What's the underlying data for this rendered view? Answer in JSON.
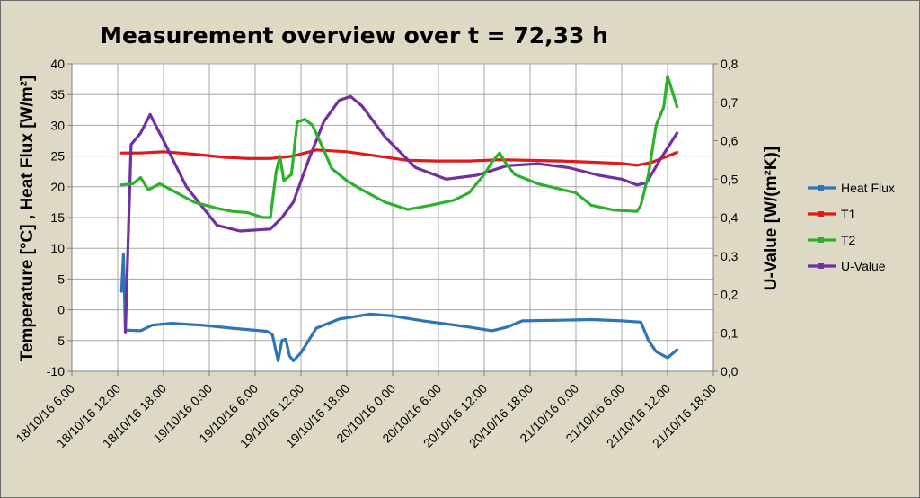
{
  "chart_data": {
    "type": "line",
    "title": "Measurement overview over t = 72,33 h",
    "ylabel": "Temperature [°C] , Heat Flux [W/m²]",
    "y2label": "U-Value [W/(m²K)]",
    "ylim": [
      -10,
      40
    ],
    "y2lim": [
      0,
      0.8
    ],
    "yticks": [
      "-10",
      "-5",
      "0",
      "5",
      "10",
      "15",
      "20",
      "25",
      "30",
      "35",
      "40"
    ],
    "y2ticks": [
      "0,0",
      "0,1",
      "0,2",
      "0,3",
      "0,4",
      "0,5",
      "0,6",
      "0,7",
      "0,8"
    ],
    "xlim": [
      "2016-10-18T06:00",
      "2016-10-21T18:00"
    ],
    "xticks": [
      "18/10/16 6:00",
      "18/10/16 12:00",
      "18/10/16 18:00",
      "19/10/16 0:00",
      "19/10/16 6:00",
      "19/10/16 12:00",
      "19/10/16 18:00",
      "20/10/16 0:00",
      "20/10/16 6:00",
      "20/10/16 12:00",
      "20/10/16 18:00",
      "21/10/16 0:00",
      "21/10/16 6:00",
      "21/10/16 12:00",
      "21/10/16 18:00"
    ],
    "grid": true,
    "legend_position": "right",
    "series": [
      {
        "name": "Heat Flux",
        "color": "#2e75b6",
        "axis": "left",
        "points": [
          [
            "2016-10-18T12:30",
            3
          ],
          [
            "2016-10-18T12:45",
            9
          ],
          [
            "2016-10-18T13:00",
            -3.3
          ],
          [
            "2016-10-18T15:00",
            -3.4
          ],
          [
            "2016-10-18T16:30",
            -2.5
          ],
          [
            "2016-10-18T19:00",
            -2.2
          ],
          [
            "2016-10-18T23:00",
            -2.5
          ],
          [
            "2016-10-19T03:00",
            -3
          ],
          [
            "2016-10-19T07:30",
            -3.5
          ],
          [
            "2016-10-19T08:15",
            -4
          ],
          [
            "2016-10-19T09:00",
            -8.3
          ],
          [
            "2016-10-19T09:30",
            -5
          ],
          [
            "2016-10-19T10:00",
            -4.8
          ],
          [
            "2016-10-19T10:30",
            -7.5
          ],
          [
            "2016-10-19T11:00",
            -8.3
          ],
          [
            "2016-10-19T12:00",
            -7
          ],
          [
            "2016-10-19T14:00",
            -3
          ],
          [
            "2016-10-19T17:00",
            -1.5
          ],
          [
            "2016-10-19T21:00",
            -0.7
          ],
          [
            "2016-10-20T00:00",
            -1
          ],
          [
            "2016-10-20T04:00",
            -1.8
          ],
          [
            "2016-10-20T10:00",
            -2.8
          ],
          [
            "2016-10-20T13:00",
            -3.4
          ],
          [
            "2016-10-20T15:00",
            -2.8
          ],
          [
            "2016-10-20T17:00",
            -1.8
          ],
          [
            "2016-10-20T22:00",
            -1.7
          ],
          [
            "2016-10-21T02:00",
            -1.6
          ],
          [
            "2016-10-21T06:00",
            -1.8
          ],
          [
            "2016-10-21T08:30",
            -2
          ],
          [
            "2016-10-21T09:30",
            -5
          ],
          [
            "2016-10-21T10:30",
            -6.8
          ],
          [
            "2016-10-21T12:00",
            -7.8
          ],
          [
            "2016-10-21T13:15",
            -6.5
          ]
        ]
      },
      {
        "name": "T1",
        "color": "#e0191b",
        "axis": "left",
        "points": [
          [
            "2016-10-18T12:30",
            25.5
          ],
          [
            "2016-10-18T15:00",
            25.5
          ],
          [
            "2016-10-18T18:00",
            25.7
          ],
          [
            "2016-10-18T22:00",
            25.3
          ],
          [
            "2016-10-19T02:00",
            24.8
          ],
          [
            "2016-10-19T05:00",
            24.6
          ],
          [
            "2016-10-19T08:00",
            24.6
          ],
          [
            "2016-10-19T11:00",
            25
          ],
          [
            "2016-10-19T14:00",
            26
          ],
          [
            "2016-10-19T18:00",
            25.7
          ],
          [
            "2016-10-19T22:00",
            25
          ],
          [
            "2016-10-20T02:00",
            24.3
          ],
          [
            "2016-10-20T06:00",
            24.2
          ],
          [
            "2016-10-20T10:00",
            24.2
          ],
          [
            "2016-10-20T14:00",
            24.4
          ],
          [
            "2016-10-20T18:00",
            24.3
          ],
          [
            "2016-10-20T22:00",
            24.2
          ],
          [
            "2016-10-21T02:00",
            24
          ],
          [
            "2016-10-21T06:00",
            23.8
          ],
          [
            "2016-10-21T08:00",
            23.5
          ],
          [
            "2016-10-21T10:00",
            24
          ],
          [
            "2016-10-21T13:15",
            25.6
          ]
        ]
      },
      {
        "name": "T2",
        "color": "#2db12d",
        "axis": "left",
        "points": [
          [
            "2016-10-18T12:30",
            20.3
          ],
          [
            "2016-10-18T14:00",
            20.5
          ],
          [
            "2016-10-18T15:00",
            21.5
          ],
          [
            "2016-10-18T16:00",
            19.5
          ],
          [
            "2016-10-18T17:30",
            20.5
          ],
          [
            "2016-10-18T19:00",
            19.5
          ],
          [
            "2016-10-18T22:00",
            17.5
          ],
          [
            "2016-10-19T01:00",
            16.5
          ],
          [
            "2016-10-19T03:00",
            16
          ],
          [
            "2016-10-19T05:00",
            15.8
          ],
          [
            "2016-10-19T07:00",
            15
          ],
          [
            "2016-10-19T08:00",
            15
          ],
          [
            "2016-10-19T08:45",
            22.5
          ],
          [
            "2016-10-19T09:15",
            25
          ],
          [
            "2016-10-19T09:45",
            21
          ],
          [
            "2016-10-19T10:45",
            22
          ],
          [
            "2016-10-19T11:30",
            30.5
          ],
          [
            "2016-10-19T12:30",
            31
          ],
          [
            "2016-10-19T13:30",
            30
          ],
          [
            "2016-10-19T15:00",
            26
          ],
          [
            "2016-10-19T16:00",
            23
          ],
          [
            "2016-10-19T18:00",
            21
          ],
          [
            "2016-10-19T20:00",
            19.5
          ],
          [
            "2016-10-19T23:00",
            17.5
          ],
          [
            "2016-10-20T02:00",
            16.3
          ],
          [
            "2016-10-20T05:00",
            17
          ],
          [
            "2016-10-20T08:00",
            17.8
          ],
          [
            "2016-10-20T10:00",
            19
          ],
          [
            "2016-10-20T12:00",
            22
          ],
          [
            "2016-10-20T13:00",
            24
          ],
          [
            "2016-10-20T14:00",
            25.5
          ],
          [
            "2016-10-20T15:00",
            23.5
          ],
          [
            "2016-10-20T16:00",
            22
          ],
          [
            "2016-10-20T19:00",
            20.5
          ],
          [
            "2016-10-21T00:00",
            19
          ],
          [
            "2016-10-21T02:00",
            17
          ],
          [
            "2016-10-21T05:00",
            16.2
          ],
          [
            "2016-10-21T08:00",
            16
          ],
          [
            "2016-10-21T08:30",
            17
          ],
          [
            "2016-10-21T09:30",
            22
          ],
          [
            "2016-10-21T10:30",
            30
          ],
          [
            "2016-10-21T11:30",
            33
          ],
          [
            "2016-10-21T12:00",
            38
          ],
          [
            "2016-10-21T12:30",
            36
          ],
          [
            "2016-10-21T13:15",
            33
          ]
        ]
      },
      {
        "name": "U-Value",
        "color": "#7030a0",
        "axis": "right",
        "points": [
          [
            "2016-10-18T13:00",
            0.1
          ],
          [
            "2016-10-18T13:45",
            0.59
          ],
          [
            "2016-10-18T15:00",
            0.62
          ],
          [
            "2016-10-18T16:15",
            0.668
          ],
          [
            "2016-10-18T18:00",
            0.6
          ],
          [
            "2016-10-18T21:00",
            0.48
          ],
          [
            "2016-10-19T01:00",
            0.38
          ],
          [
            "2016-10-19T04:00",
            0.365
          ],
          [
            "2016-10-19T08:00",
            0.37
          ],
          [
            "2016-10-19T09:30",
            0.4
          ],
          [
            "2016-10-19T11:00",
            0.44
          ],
          [
            "2016-10-19T13:00",
            0.55
          ],
          [
            "2016-10-19T15:00",
            0.65
          ],
          [
            "2016-10-19T17:00",
            0.705
          ],
          [
            "2016-10-19T18:30",
            0.715
          ],
          [
            "2016-10-19T20:00",
            0.69
          ],
          [
            "2016-10-19T23:00",
            0.61
          ],
          [
            "2016-10-20T03:00",
            0.53
          ],
          [
            "2016-10-20T07:00",
            0.5
          ],
          [
            "2016-10-20T11:00",
            0.51
          ],
          [
            "2016-10-20T15:00",
            0.535
          ],
          [
            "2016-10-20T19:00",
            0.54
          ],
          [
            "2016-10-20T23:00",
            0.53
          ],
          [
            "2016-10-21T03:00",
            0.51
          ],
          [
            "2016-10-21T06:00",
            0.5
          ],
          [
            "2016-10-21T08:00",
            0.485
          ],
          [
            "2016-10-21T09:15",
            0.49
          ],
          [
            "2016-10-21T11:00",
            0.55
          ],
          [
            "2016-10-21T13:15",
            0.62
          ]
        ]
      }
    ]
  }
}
